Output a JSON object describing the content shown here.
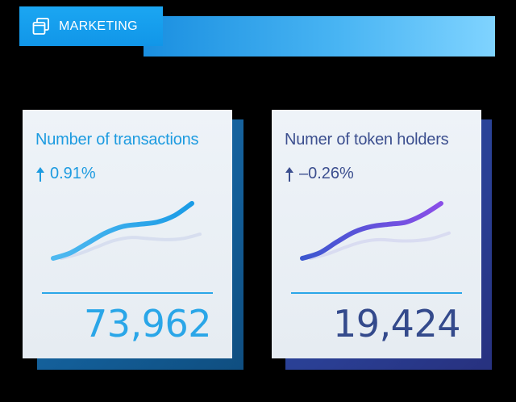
{
  "header": {
    "title": "MARKETING",
    "icon": "windows-stack-icon",
    "colors": {
      "tab": "#1196e8",
      "bar_start": "#1a8fe0",
      "bar_end": "#7fd3ff"
    }
  },
  "cards": [
    {
      "title": "Number of  transactions",
      "change": "0.91%",
      "change_icon": "up-arrow-icon",
      "value": "73,962",
      "accent": "#2aa6e8",
      "trend": [
        0.0,
        0.1,
        0.28,
        0.46,
        0.58,
        0.62,
        0.66,
        0.78,
        1.0
      ],
      "ghost_trend": [
        0.0,
        0.08,
        0.2,
        0.32,
        0.38,
        0.36,
        0.34,
        0.36,
        0.44
      ]
    },
    {
      "title": "Numer of token holders",
      "change": "–0.26%",
      "change_icon": "up-arrow-icon",
      "value": "19,424",
      "accent": "#7a4fe6",
      "trend": [
        0.0,
        0.1,
        0.3,
        0.48,
        0.58,
        0.62,
        0.66,
        0.8,
        1.0
      ],
      "ghost_trend": [
        0.0,
        0.08,
        0.2,
        0.3,
        0.34,
        0.32,
        0.32,
        0.36,
        0.46
      ]
    }
  ]
}
